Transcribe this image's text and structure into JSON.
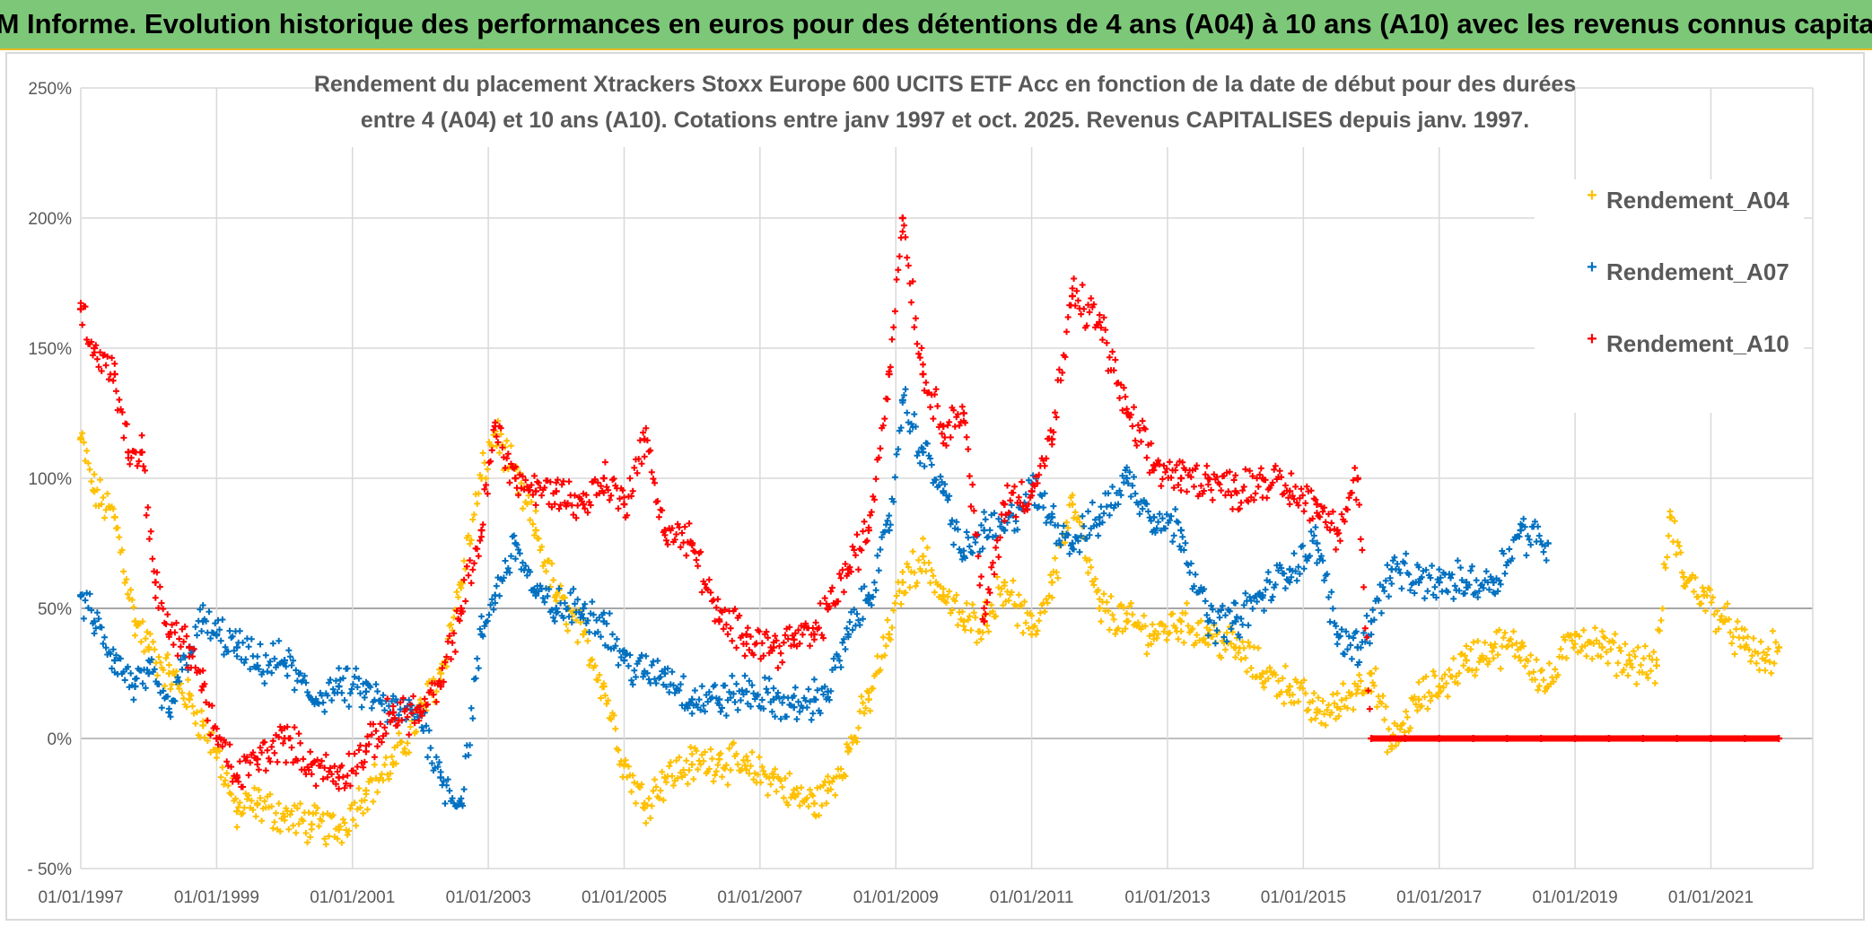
{
  "banner": {
    "title": "ADAM Informe. Evolution historique des performances en euros pour des détentions de 4 ans (A04) à 10 ans (A10) avec les revenus connus capitalisés"
  },
  "colors": {
    "banner_bg": "#7dc779",
    "a04": "#ffc000",
    "a07": "#0070c0",
    "a10": "#ff0000",
    "grid": "#d9d9d9",
    "zero_line": "#bfbfbf"
  },
  "chart_data": {
    "type": "scatter",
    "title_lines": [
      "Rendement du placement Xtrackers Stoxx Europe 600 UCITS ETF Acc en fonction de la date de début pour des durées",
      "entre 4 (A04) et 10 ans (A10). Cotations entre janv 1997 et oct. 2025. Revenus CAPITALISES depuis janv. 1997."
    ],
    "xlabel": "",
    "ylabel": "",
    "xlim": [
      1997.0,
      2022.5
    ],
    "ylim": [
      -50,
      250
    ],
    "x_ticks": [
      1997,
      1999,
      2001,
      2003,
      2005,
      2007,
      2009,
      2011,
      2013,
      2015,
      2017,
      2019,
      2021
    ],
    "x_tick_labels": [
      "01/01/1997",
      "01/01/1999",
      "01/01/2001",
      "01/01/2003",
      "01/01/2005",
      "01/01/2007",
      "01/01/2009",
      "01/01/2011",
      "01/01/2013",
      "01/01/2015",
      "01/01/2017",
      "01/01/2019",
      "01/01/2021"
    ],
    "y_ticks": [
      -50,
      0,
      50,
      100,
      150,
      200,
      250
    ],
    "y_tick_labels": [
      "- 50%",
      "0%",
      "50%",
      "100%",
      "150%",
      "200%",
      "250%"
    ],
    "grid": true,
    "legend_position": "top-right",
    "series": [
      {
        "name": "Rendement_A04",
        "color": "#ffc000",
        "x": [
          1997.0,
          1997.2,
          1997.5,
          1997.8,
          1998.0,
          1998.3,
          1998.6,
          1998.8,
          1999.0,
          1999.3,
          1999.6,
          2000.0,
          2000.4,
          2000.8,
          2001.2,
          2001.6,
          2002.0,
          2002.3,
          2002.6,
          2002.9,
          2003.1,
          2003.4,
          2003.7,
          2004.0,
          2004.4,
          2004.7,
          2005.0,
          2005.3,
          2005.6,
          2006.0,
          2006.4,
          2006.8,
          2007.2,
          2007.5,
          2007.8,
          2008.0,
          2008.3,
          2008.6,
          2008.9,
          2009.1,
          2009.4,
          2009.7,
          2010.0,
          2010.3,
          2010.6,
          2011.0,
          2011.3,
          2011.6,
          2012.0,
          2012.4,
          2012.8,
          2013.2,
          2013.6,
          2014.0,
          2014.4,
          2014.8,
          2015.2,
          2015.5,
          2015.8,
          2016.0,
          2016.3,
          2016.7,
          2017.0,
          2017.4,
          2017.8,
          2018.2,
          2018.6,
          2019.0,
          2019.4,
          2019.8,
          2020.2,
          2020.4,
          2020.6,
          2020.9,
          2021.2,
          2021.5,
          2021.8,
          2022.0
        ],
        "y": [
          115,
          95,
          85,
          45,
          35,
          25,
          15,
          5,
          -5,
          -28,
          -25,
          -30,
          -33,
          -35,
          -20,
          -10,
          10,
          25,
          60,
          100,
          118,
          100,
          80,
          55,
          40,
          20,
          -10,
          -25,
          -15,
          -10,
          -8,
          -12,
          -15,
          -22,
          -25,
          -20,
          -5,
          15,
          40,
          60,
          70,
          55,
          45,
          45,
          60,
          40,
          60,
          90,
          50,
          45,
          40,
          45,
          40,
          35,
          25,
          20,
          10,
          12,
          20,
          25,
          -3,
          15,
          20,
          30,
          35,
          35,
          20,
          40,
          35,
          30,
          28,
          85,
          62,
          55,
          45,
          35,
          30,
          35
        ]
      },
      {
        "name": "Rendement_A07",
        "color": "#0070c0",
        "x": [
          1997.0,
          1997.2,
          1997.5,
          1997.8,
          1998.0,
          1998.3,
          1998.6,
          1998.8,
          1999.0,
          1999.3,
          1999.6,
          2000.0,
          2000.4,
          2000.8,
          2001.2,
          2001.6,
          2002.0,
          2002.3,
          2002.6,
          2002.9,
          2003.1,
          2003.4,
          2003.7,
          2004.0,
          2004.4,
          2004.7,
          2005.0,
          2005.3,
          2005.6,
          2006.0,
          2006.4,
          2006.8,
          2007.2,
          2007.5,
          2007.8,
          2008.0,
          2008.3,
          2008.6,
          2008.9,
          2009.1,
          2009.4,
          2009.7,
          2010.0,
          2010.3,
          2010.6,
          2011.0,
          2011.3,
          2011.6,
          2012.0,
          2012.4,
          2012.8,
          2013.2,
          2013.6,
          2014.0,
          2014.4,
          2014.8,
          2015.2,
          2015.5,
          2015.8,
          2016.0,
          2016.3,
          2016.7,
          2017.0,
          2017.4,
          2017.8,
          2018.2,
          2018.6
        ],
        "y": [
          55,
          45,
          30,
          20,
          25,
          10,
          35,
          45,
          40,
          35,
          28,
          30,
          15,
          20,
          18,
          10,
          10,
          -15,
          -25,
          40,
          55,
          75,
          55,
          50,
          50,
          45,
          30,
          25,
          25,
          15,
          15,
          18,
          15,
          12,
          15,
          18,
          40,
          55,
          80,
          130,
          110,
          95,
          70,
          80,
          80,
          95,
          85,
          75,
          85,
          100,
          85,
          80,
          45,
          45,
          55,
          65,
          75,
          40,
          35,
          45,
          65,
          60,
          60,
          60,
          60,
          80,
          75
        ]
      },
      {
        "name": "Rendement_A10",
        "color": "#ff0000",
        "x": [
          1997.0,
          1997.2,
          1997.5,
          1997.7,
          1997.9,
          1998.1,
          1998.3,
          1998.6,
          1998.8,
          1999.0,
          1999.3,
          1999.6,
          2000.0,
          2000.4,
          2000.8,
          2001.2,
          2001.6,
          2002.0,
          2002.3,
          2002.6,
          2002.9,
          2003.1,
          2003.4,
          2003.7,
          2004.0,
          2004.4,
          2004.7,
          2005.0,
          2005.3,
          2005.6,
          2006.0,
          2006.4,
          2006.8,
          2007.2,
          2007.5,
          2007.8,
          2008.0,
          2008.3,
          2008.6,
          2008.9,
          2009.1,
          2009.4,
          2009.7,
          2010.0,
          2010.3,
          2010.6,
          2011.0,
          2011.3,
          2011.6,
          2012.0,
          2012.4,
          2012.8,
          2013.2,
          2013.6,
          2014.0,
          2014.4,
          2014.8,
          2015.2,
          2015.5,
          2015.8,
          2016.0,
          2016.5,
          2017.0,
          2017.5,
          2018.0,
          2018.5,
          2019.0,
          2019.5,
          2020.0,
          2020.5,
          2021.0,
          2021.5,
          2022.0
        ],
        "y": [
          165,
          150,
          140,
          110,
          110,
          60,
          40,
          35,
          20,
          0,
          -15,
          -8,
          0,
          -10,
          -15,
          -5,
          10,
          10,
          20,
          50,
          80,
          120,
          100,
          95,
          95,
          90,
          100,
          90,
          115,
          80,
          75,
          45,
          40,
          35,
          38,
          40,
          50,
          65,
          80,
          140,
          200,
          140,
          120,
          125,
          45,
          90,
          95,
          115,
          170,
          160,
          125,
          105,
          100,
          100,
          95,
          100,
          95,
          90,
          80,
          100,
          0,
          0,
          0,
          0,
          0,
          0,
          0,
          0,
          0,
          0,
          0,
          0,
          0
        ]
      }
    ]
  }
}
